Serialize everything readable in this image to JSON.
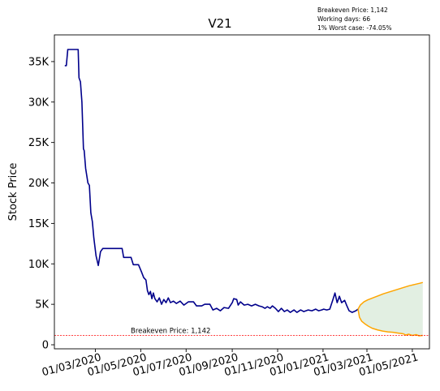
{
  "chart_data": {
    "type": "line",
    "title": "V21",
    "ylabel": "Stock Price",
    "xlabel": "",
    "annotations": [
      "Breakeven Price: 1,142",
      "Working days: 66",
      "1% Worst case: -74.05%"
    ],
    "breakeven": {
      "value": 1142,
      "label": "Breakeven Price: 1,142"
    },
    "ylim": [
      -500,
      38300
    ],
    "xlim": [
      "2020-01-06",
      "2021-05-24"
    ],
    "y_ticks": [
      {
        "value": 0,
        "label": "0"
      },
      {
        "value": 5000,
        "label": "5K"
      },
      {
        "value": 10000,
        "label": "10K"
      },
      {
        "value": 15000,
        "label": "15K"
      },
      {
        "value": 20000,
        "label": "20K"
      },
      {
        "value": 25000,
        "label": "25K"
      },
      {
        "value": 30000,
        "label": "30K"
      },
      {
        "value": 35000,
        "label": "35K"
      }
    ],
    "x_ticks": [
      {
        "date": "2020-03-01",
        "label": "01/03/2020"
      },
      {
        "date": "2020-05-01",
        "label": "01/05/2020"
      },
      {
        "date": "2020-07-01",
        "label": "01/07/2020"
      },
      {
        "date": "2020-09-01",
        "label": "01/09/2020"
      },
      {
        "date": "2020-11-01",
        "label": "01/11/2020"
      },
      {
        "date": "2021-01-01",
        "label": "01/01/2021"
      },
      {
        "date": "2021-03-01",
        "label": "01/03/2021"
      },
      {
        "date": "2021-05-01",
        "label": "01/05/2021"
      }
    ],
    "grid": false,
    "series": [
      {
        "color": "#00008b",
        "points": [
          [
            "2020-01-20",
            34500
          ],
          [
            "2020-01-22",
            34500
          ],
          [
            "2020-01-24",
            36500
          ],
          [
            "2020-02-07",
            36500
          ],
          [
            "2020-02-08",
            33000
          ],
          [
            "2020-02-10",
            32500
          ],
          [
            "2020-02-12",
            30000
          ],
          [
            "2020-02-14",
            24200
          ],
          [
            "2020-02-15",
            24000
          ],
          [
            "2020-02-17",
            21800
          ],
          [
            "2020-02-20",
            20000
          ],
          [
            "2020-02-22",
            19700
          ],
          [
            "2020-02-24",
            16300
          ],
          [
            "2020-02-26",
            15200
          ],
          [
            "2020-02-28",
            13200
          ],
          [
            "2020-03-02",
            11000
          ],
          [
            "2020-03-05",
            9800
          ],
          [
            "2020-03-08",
            11500
          ],
          [
            "2020-03-11",
            11900
          ],
          [
            "2020-04-06",
            11900
          ],
          [
            "2020-04-08",
            10800
          ],
          [
            "2020-04-18",
            10800
          ],
          [
            "2020-04-21",
            9900
          ],
          [
            "2020-04-28",
            9900
          ],
          [
            "2020-05-02",
            9000
          ],
          [
            "2020-05-05",
            8300
          ],
          [
            "2020-05-08",
            8000
          ],
          [
            "2020-05-10",
            6700
          ],
          [
            "2020-05-12",
            6200
          ],
          [
            "2020-05-14",
            6600
          ],
          [
            "2020-05-16",
            5700
          ],
          [
            "2020-05-18",
            6400
          ],
          [
            "2020-05-20",
            5700
          ],
          [
            "2020-05-23",
            5300
          ],
          [
            "2020-05-26",
            5800
          ],
          [
            "2020-05-29",
            5000
          ],
          [
            "2020-06-01",
            5600
          ],
          [
            "2020-06-04",
            5200
          ],
          [
            "2020-06-07",
            5800
          ],
          [
            "2020-06-10",
            5200
          ],
          [
            "2020-06-14",
            5400
          ],
          [
            "2020-06-18",
            5100
          ],
          [
            "2020-06-23",
            5400
          ],
          [
            "2020-06-28",
            4900
          ],
          [
            "2020-07-04",
            5300
          ],
          [
            "2020-07-11",
            5300
          ],
          [
            "2020-07-15",
            4800
          ],
          [
            "2020-07-22",
            4800
          ],
          [
            "2020-07-26",
            5000
          ],
          [
            "2020-08-02",
            5000
          ],
          [
            "2020-08-06",
            4300
          ],
          [
            "2020-08-11",
            4500
          ],
          [
            "2020-08-16",
            4200
          ],
          [
            "2020-08-21",
            4600
          ],
          [
            "2020-08-27",
            4500
          ],
          [
            "2020-09-01",
            5200
          ],
          [
            "2020-09-03",
            5700
          ],
          [
            "2020-09-07",
            5600
          ],
          [
            "2020-09-09",
            4900
          ],
          [
            "2020-09-12",
            5300
          ],
          [
            "2020-09-17",
            4900
          ],
          [
            "2020-09-22",
            5000
          ],
          [
            "2020-09-27",
            4800
          ],
          [
            "2020-10-02",
            5000
          ],
          [
            "2020-10-07",
            4800
          ],
          [
            "2020-10-11",
            4700
          ],
          [
            "2020-10-15",
            4500
          ],
          [
            "2020-10-18",
            4700
          ],
          [
            "2020-10-22",
            4500
          ],
          [
            "2020-10-25",
            4800
          ],
          [
            "2020-10-29",
            4500
          ],
          [
            "2020-11-02",
            4100
          ],
          [
            "2020-11-06",
            4500
          ],
          [
            "2020-11-10",
            4100
          ],
          [
            "2020-11-14",
            4300
          ],
          [
            "2020-11-18",
            4000
          ],
          [
            "2020-11-23",
            4300
          ],
          [
            "2020-11-27",
            4000
          ],
          [
            "2020-12-02",
            4300
          ],
          [
            "2020-12-06",
            4100
          ],
          [
            "2020-12-12",
            4300
          ],
          [
            "2020-12-17",
            4200
          ],
          [
            "2020-12-22",
            4400
          ],
          [
            "2020-12-26",
            4200
          ],
          [
            "2020-12-30",
            4300
          ],
          [
            "2021-01-02",
            4400
          ],
          [
            "2021-01-06",
            4300
          ],
          [
            "2021-01-10",
            4400
          ],
          [
            "2021-01-14",
            5500
          ],
          [
            "2021-01-17",
            6400
          ],
          [
            "2021-01-20",
            5200
          ],
          [
            "2021-01-23",
            6000
          ],
          [
            "2021-01-26",
            5200
          ],
          [
            "2021-01-30",
            5500
          ],
          [
            "2021-02-02",
            4800
          ],
          [
            "2021-02-05",
            4200
          ],
          [
            "2021-02-09",
            4000
          ],
          [
            "2021-02-14",
            4200
          ],
          [
            "2021-02-17",
            4400
          ]
        ]
      },
      {
        "color": "#ffa500",
        "points": [
          [
            "2021-02-17",
            4400
          ],
          [
            "2021-02-20",
            4900
          ],
          [
            "2021-02-25",
            5300
          ],
          [
            "2021-03-02",
            5550
          ],
          [
            "2021-03-09",
            5800
          ],
          [
            "2021-03-16",
            6050
          ],
          [
            "2021-03-23",
            6300
          ],
          [
            "2021-03-30",
            6500
          ],
          [
            "2021-04-06",
            6700
          ],
          [
            "2021-04-13",
            6900
          ],
          [
            "2021-04-20",
            7100
          ],
          [
            "2021-04-27",
            7300
          ],
          [
            "2021-05-04",
            7450
          ],
          [
            "2021-05-11",
            7600
          ],
          [
            "2021-05-15",
            7700
          ]
        ]
      },
      {
        "color": "#ffa500",
        "points": [
          [
            "2021-02-17",
            4400
          ],
          [
            "2021-02-19",
            3400
          ],
          [
            "2021-02-22",
            2900
          ],
          [
            "2021-02-26",
            2600
          ],
          [
            "2021-03-03",
            2300
          ],
          [
            "2021-03-08",
            2050
          ],
          [
            "2021-03-15",
            1850
          ],
          [
            "2021-03-22",
            1700
          ],
          [
            "2021-03-29",
            1600
          ],
          [
            "2021-04-05",
            1550
          ],
          [
            "2021-04-12",
            1450
          ],
          [
            "2021-04-19",
            1350
          ],
          [
            "2021-04-22",
            1200
          ],
          [
            "2021-04-26",
            1300
          ],
          [
            "2021-05-01",
            1150
          ],
          [
            "2021-05-06",
            1250
          ],
          [
            "2021-05-10",
            1100
          ],
          [
            "2021-05-15",
            1150
          ]
        ]
      }
    ],
    "fill_color": "#d8ead8"
  }
}
